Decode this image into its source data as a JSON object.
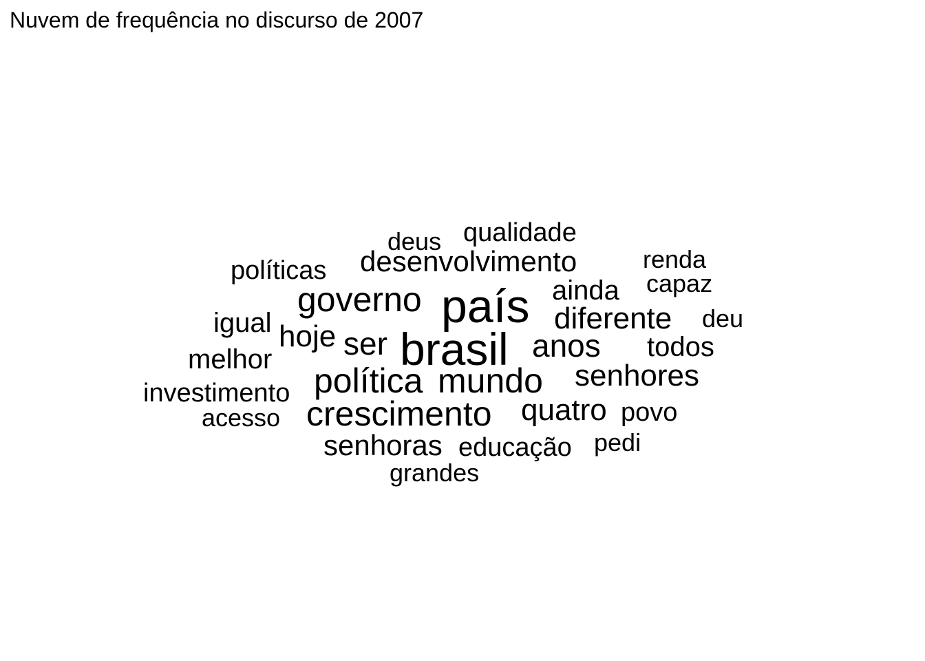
{
  "chart_data": {
    "type": "wordcloud",
    "title": "Nuvem de frequência no discurso de 2007",
    "words": [
      {
        "text": "país",
        "weight": 10
      },
      {
        "text": "brasil",
        "weight": 10
      },
      {
        "text": "governo",
        "weight": 7
      },
      {
        "text": "mundo",
        "weight": 7
      },
      {
        "text": "política",
        "weight": 7
      },
      {
        "text": "crescimento",
        "weight": 7
      },
      {
        "text": "ser",
        "weight": 6
      },
      {
        "text": "anos",
        "weight": 6
      },
      {
        "text": "diferente",
        "weight": 5
      },
      {
        "text": "senhores",
        "weight": 5
      },
      {
        "text": "quatro",
        "weight": 5
      },
      {
        "text": "hoje",
        "weight": 5
      },
      {
        "text": "desenvolvimento",
        "weight": 5
      },
      {
        "text": "senhoras",
        "weight": 5
      },
      {
        "text": "ainda",
        "weight": 4
      },
      {
        "text": "todos",
        "weight": 4
      },
      {
        "text": "igual",
        "weight": 4
      },
      {
        "text": "melhor",
        "weight": 4
      },
      {
        "text": "qualidade",
        "weight": 4
      },
      {
        "text": "políticas",
        "weight": 4
      },
      {
        "text": "investimento",
        "weight": 4
      },
      {
        "text": "educação",
        "weight": 4
      },
      {
        "text": "povo",
        "weight": 3
      },
      {
        "text": "deus",
        "weight": 3
      },
      {
        "text": "renda",
        "weight": 3
      },
      {
        "text": "capaz",
        "weight": 3
      },
      {
        "text": "deu",
        "weight": 3
      },
      {
        "text": "acesso",
        "weight": 3
      },
      {
        "text": "pedi",
        "weight": 3
      },
      {
        "text": "grandes",
        "weight": 3
      }
    ]
  }
}
